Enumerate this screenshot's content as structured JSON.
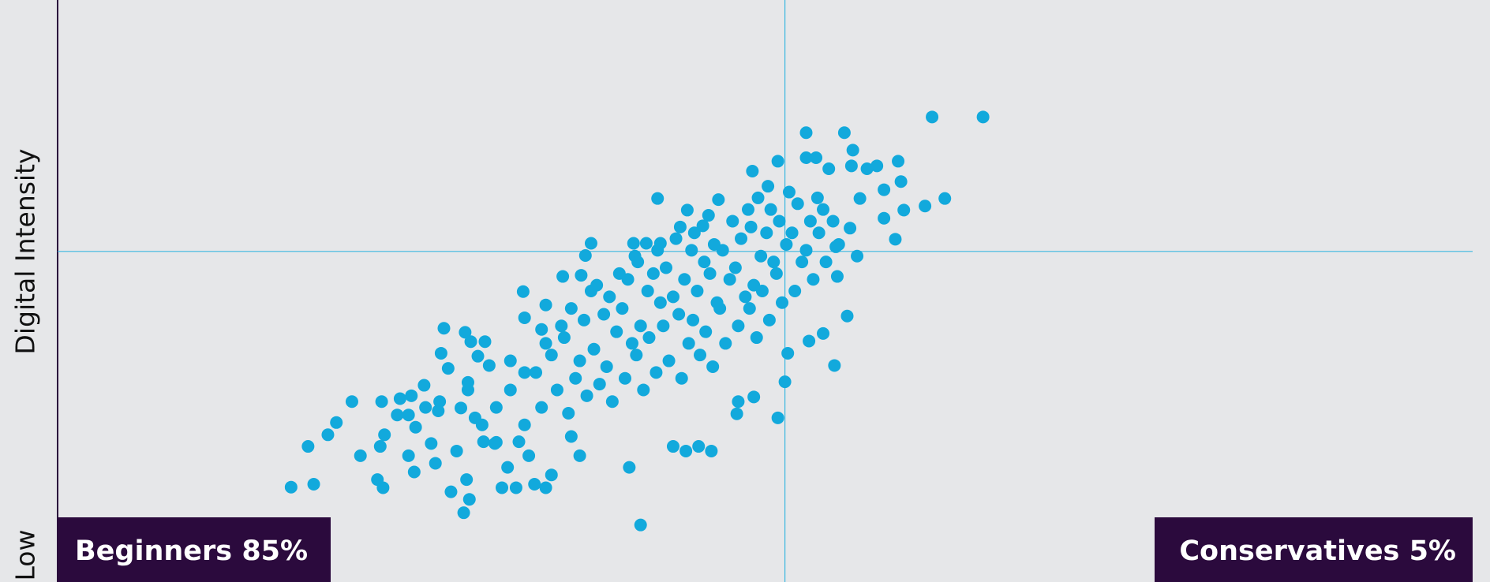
{
  "chart_data": {
    "type": "scatter",
    "y_label": "Digital Intensity",
    "y_low_label": "Low",
    "quadrant_labels": [
      "Beginners 85%",
      "Conservatives 5%"
    ],
    "xlim": [
      0,
      100
    ],
    "ylim": [
      0,
      100
    ],
    "quadrant_lines": {
      "x": 51.4,
      "y": 56.8
    },
    "x": [
      16.5,
      18.1,
      17.7,
      19.1,
      19.7,
      20.8,
      21.4,
      22.6,
      23.0,
      22.8,
      23.1,
      22.9,
      24.0,
      24.2,
      24.8,
      25.2,
      24.8,
      25.3,
      25.9,
      26.7,
      26.4,
      26.9,
      27.3,
      27.1,
      27.6,
      27.8,
      28.7,
      28.9,
      29.1,
      28.2,
      28.8,
      29.2,
      29.0,
      28.5,
      29.5,
      30.2,
      30.5,
      29.7,
      30.1,
      30.9,
      31.4,
      31.8,
      32.4,
      32.9,
      33.0,
      32.6,
      33.3,
      33.7,
      34.5,
      34.9,
      34.5,
      34.2,
      35.7,
      37.0,
      37.3,
      37.7,
      36.9,
      36.3,
      40.4,
      41.2,
      40.7,
      41.6,
      42.4,
      42.6,
      43.5,
      44.4,
      45.3,
      46.2,
      44.5,
      45.6,
      46.7,
      48.0,
      48.1,
      49.2,
      49.1,
      50.2,
      50.9,
      50.9,
      51.4,
      51.6,
      52.9,
      52.9,
      53.6,
      54.5,
      55.6,
      56.2,
      56.1,
      57.2,
      57.9,
      59.4,
      59.6,
      58.4,
      59.8,
      58.4,
      59.2,
      61.3,
      62.7,
      61.8,
      65.4,
      56.5,
      55.1,
      55.8,
      54.9,
      54.1,
      53.1,
      56.7,
      56.0,
      55.0,
      34.2,
      33.8,
      34.5,
      35.3,
      34.9,
      35.6,
      36.1,
      36.6,
      35.8,
      36.3,
      37.4,
      36.9,
      37.2,
      37.7,
      38.3,
      37.9,
      38.6,
      38.1,
      39.2,
      38.8,
      39.5,
      39.0,
      39.7,
      40.1,
      40.6,
      39.9,
      40.3,
      40.8,
      41.4,
      40.9,
      41.2,
      41.7,
      41.0,
      42.3,
      41.8,
      42.6,
      42.1,
      42.4,
      43.2,
      42.8,
      43.5,
      43.0,
      43.7,
      44.1,
      44.6,
      43.9,
      44.3,
      44.8,
      44.0,
      45.4,
      44.9,
      45.2,
      45.7,
      45.0,
      46.3,
      45.8,
      46.6,
      46.1,
      46.4,
      46.0,
      47.2,
      46.8,
      47.5,
      47.0,
      47.7,
      48.1,
      48.6,
      47.9,
      48.3,
      48.8,
      49.4,
      48.9,
      49.2,
      49.7,
      49.0,
      49.5,
      50.3,
      49.8,
      50.6,
      50.1,
      50.4,
      51.2,
      50.8,
      51.5,
      51.0,
      51.7,
      52.1,
      52.6,
      51.9,
      52.3,
      53.4,
      52.9,
      53.2,
      53.7,
      54.3,
      53.8,
      54.1,
      55.2,
      54.8,
      30,
      31,
      32,
      33,
      31,
      29,
      32,
      33,
      27,
      26,
      25
    ],
    "series": [
      {
        "color": "#12a9dc",
        "values": [
          16.3,
          16.8,
          23.3,
          25.3,
          27.4,
          31.0,
          21.7,
          17.6,
          16.2,
          23.3,
          25.3,
          31.0,
          28.7,
          31.5,
          28.7,
          18.9,
          21.7,
          26.6,
          33.8,
          20.4,
          23.8,
          29.4,
          43.6,
          39.3,
          36.7,
          15.5,
          11.9,
          17.6,
          14.2,
          22.5,
          42.9,
          41.3,
          34.3,
          29.9,
          28.2,
          41.3,
          37.2,
          38.8,
          24.1,
          23.8,
          16.2,
          19.7,
          16.2,
          49.9,
          45.4,
          24.1,
          21.7,
          16.8,
          16.2,
          18.4,
          47.6,
          43.4,
          52.5,
          52.7,
          56.1,
          58.2,
          21.7,
          25.0,
          19.7,
          9.8,
          58.2,
          58.2,
          65.9,
          58.2,
          23.3,
          22.5,
          23.3,
          22.5,
          63.9,
          61.2,
          65.7,
          28.9,
          31.0,
          31.8,
          70.6,
          68.0,
          72.3,
          28.2,
          34.4,
          39.3,
          77.2,
          72.9,
          72.9,
          71.0,
          77.2,
          74.2,
          71.5,
          71.0,
          71.5,
          72.3,
          68.8,
          67.4,
          63.9,
          62.5,
          58.9,
          64.6,
          65.9,
          79.9,
          79.9,
          56.0,
          52.5,
          45.7,
          37.2,
          42.7,
          41.4,
          65.9,
          60.8,
          57.6,
          30,
          36,
          41,
          33,
          39,
          44,
          29,
          35,
          42,
          47,
          32,
          38,
          45,
          50,
          34,
          40,
          46,
          51,
          31,
          37,
          43,
          49,
          53,
          35,
          41,
          47,
          52,
          56,
          33,
          39,
          44,
          50,
          55,
          36,
          42,
          48,
          53,
          57,
          38,
          44,
          49,
          54,
          59,
          35,
          41,
          46,
          52,
          57,
          61,
          39,
          45,
          50,
          55,
          60,
          37,
          43,
          48,
          53,
          58,
          63,
          41,
          47,
          52,
          57,
          62,
          44,
          49,
          54,
          59,
          64,
          42,
          47,
          51,
          56,
          61,
          66,
          45,
          50,
          55,
          60,
          64,
          48,
          53,
          58,
          62,
          67,
          50,
          55,
          60,
          65,
          52,
          57,
          62,
          66,
          55,
          60,
          64,
          58,
          62,
          27,
          30,
          33,
          27,
          24,
          33,
          38,
          36,
          31,
          30,
          32
        ]
      }
    ]
  }
}
